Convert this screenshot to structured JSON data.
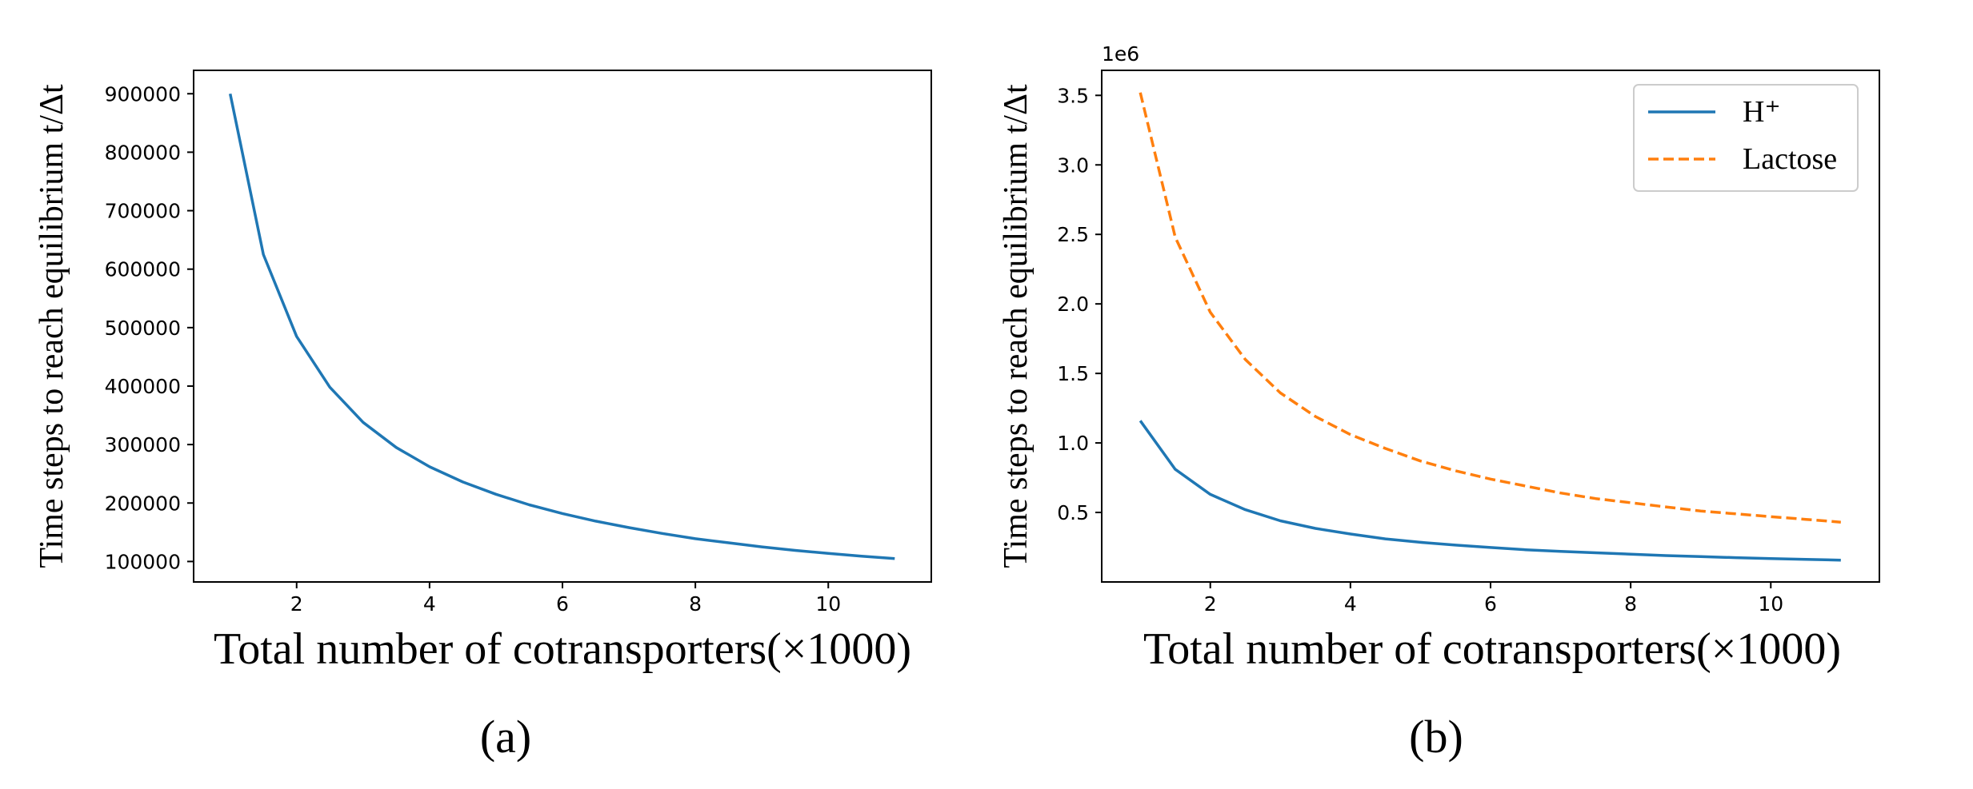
{
  "chart_data": [
    {
      "type": "line",
      "panel_label": "(a)",
      "xlabel": "Total number of cotransporters(×1000)",
      "ylabel": "Time steps to reach equilibrium t/Δt",
      "xlim": [
        0.45,
        11.55
      ],
      "ylim": [
        65000,
        940000
      ],
      "x_ticks": [
        2,
        4,
        6,
        8,
        10
      ],
      "y_ticks": [
        100000,
        200000,
        300000,
        400000,
        500000,
        600000,
        700000,
        800000,
        900000
      ],
      "y_tick_labels": [
        "100000",
        "200000",
        "300000",
        "400000",
        "500000",
        "600000",
        "700000",
        "800000",
        "900000"
      ],
      "offset_text": "",
      "series": [
        {
          "name": "",
          "color": "#1f77b4",
          "dash": "solid",
          "x": [
            1,
            1.5,
            2,
            2.5,
            3,
            3.5,
            4,
            4.5,
            5,
            5.5,
            6,
            6.5,
            7,
            7.5,
            8,
            8.5,
            9,
            9.5,
            10,
            10.5,
            11
          ],
          "values": [
            900000,
            625000,
            485000,
            398000,
            338000,
            295000,
            262000,
            236000,
            215000,
            197000,
            182000,
            169000,
            158000,
            148000,
            139000,
            132000,
            125000,
            119000,
            114000,
            109000,
            105000
          ]
        }
      ]
    },
    {
      "type": "line",
      "panel_label": "(b)",
      "xlabel": "Total number of cotransporters(×1000)",
      "ylabel": "Time steps to reach equilibrium t/Δt",
      "xlim": [
        0.45,
        11.55
      ],
      "ylim": [
        0,
        3.68
      ],
      "x_ticks": [
        2,
        4,
        6,
        8,
        10
      ],
      "y_ticks": [
        0.5,
        1.0,
        1.5,
        2.0,
        2.5,
        3.0,
        3.5
      ],
      "y_tick_labels": [
        "0.5",
        "1.0",
        "1.5",
        "2.0",
        "2.5",
        "3.0",
        "3.5"
      ],
      "offset_text": "1e6",
      "legend_position": "top-right",
      "series": [
        {
          "name": "H⁺",
          "color": "#1f77b4",
          "dash": "solid",
          "x": [
            1,
            1.5,
            2,
            2.5,
            3,
            3.5,
            4,
            4.5,
            5,
            5.5,
            6,
            6.5,
            7,
            7.5,
            8,
            8.5,
            9,
            9.5,
            10,
            10.5,
            11
          ],
          "values": [
            1.16,
            0.81,
            0.63,
            0.52,
            0.44,
            0.385,
            0.345,
            0.31,
            0.285,
            0.265,
            0.248,
            0.232,
            0.22,
            0.21,
            0.2,
            0.19,
            0.182,
            0.175,
            0.168,
            0.162,
            0.157
          ]
        },
        {
          "name": "Lactose",
          "color": "#ff7f0e",
          "dash": "dashed",
          "x": [
            1,
            1.5,
            2,
            2.5,
            3,
            3.5,
            4,
            4.5,
            5,
            5.5,
            6,
            6.5,
            7,
            7.5,
            8,
            8.5,
            9,
            9.5,
            10,
            10.5,
            11
          ],
          "values": [
            3.52,
            2.48,
            1.94,
            1.6,
            1.36,
            1.19,
            1.06,
            0.96,
            0.87,
            0.8,
            0.74,
            0.69,
            0.64,
            0.6,
            0.57,
            0.54,
            0.51,
            0.49,
            0.47,
            0.45,
            0.43
          ]
        }
      ]
    }
  ]
}
